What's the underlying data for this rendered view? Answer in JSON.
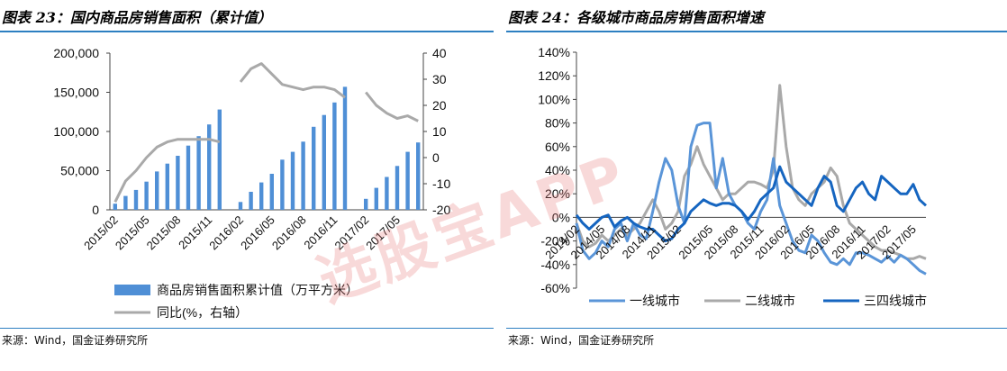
{
  "left": {
    "title": "图表 23：国内商品房销售面积（累计值）",
    "source": "来源：Wind，国金证券研究所",
    "legend": {
      "bar": "商品房销售面积累计值（万平方米）",
      "line": "同比(%，右轴）"
    }
  },
  "right": {
    "title": "图表 24：各级城市商品房销售面积增速",
    "source": "来源：Wind，国金证券研究所",
    "legend": [
      "一线城市",
      "二线城市",
      "三四线城市"
    ]
  },
  "colors": {
    "bar": "#4f8fd6",
    "yoy": "#a9a9a9",
    "tier1": "#5a95d8",
    "tier2": "#a9a9a9",
    "tier34": "#1565c0",
    "rule": "#2d7fc1"
  },
  "watermark": "选股宝APP",
  "chart_data": [
    {
      "type": "bar",
      "title": "图表 23：国内商品房销售面积（累计值）",
      "x": [
        "2015/02",
        "2015/03",
        "2015/04",
        "2015/05",
        "2015/06",
        "2015/07",
        "2015/08",
        "2015/09",
        "2015/10",
        "2015/11",
        "2015/12",
        "2016/01",
        "2016/02",
        "2016/03",
        "2016/04",
        "2016/05",
        "2016/06",
        "2016/07",
        "2016/08",
        "2016/09",
        "2016/10",
        "2016/11",
        "2016/12",
        "2017/01",
        "2017/02",
        "2017/03",
        "2017/04",
        "2017/05",
        "2017/06",
        "2017/07"
      ],
      "x_tick_labels": [
        "2015/02",
        "2015/05",
        "2015/08",
        "2015/11",
        "2016/02",
        "2016/05",
        "2016/08",
        "2016/11",
        "2017/02",
        "2017/05"
      ],
      "ylim": [
        0,
        200000
      ],
      "y_ticks": [
        "0",
        "50,000",
        "100,000",
        "150,000",
        "200,000"
      ],
      "y2lim": [
        -20,
        40
      ],
      "y2_ticks": [
        "-20",
        "-10",
        "0",
        "10",
        "20",
        "30",
        "40"
      ],
      "series": [
        {
          "name": "商品房销售面积累计值（万平方米）",
          "kind": "bar",
          "axis": "left",
          "values": [
            7800,
            17700,
            25400,
            36000,
            49000,
            59000,
            69000,
            82000,
            94000,
            109000,
            128000,
            null,
            10000,
            23000,
            35000,
            46000,
            64000,
            74000,
            87000,
            106000,
            121000,
            137000,
            157000,
            null,
            14000,
            28000,
            42000,
            56000,
            74000,
            86000
          ]
        },
        {
          "name": "同比(%，右轴）",
          "kind": "line",
          "axis": "right",
          "values": [
            -17,
            -9,
            -5,
            0,
            4,
            6,
            7,
            7,
            7,
            7,
            6,
            null,
            29,
            34,
            36,
            32,
            28,
            27,
            26,
            27,
            27,
            26,
            23,
            null,
            25,
            20,
            17,
            15,
            16,
            14
          ]
        }
      ]
    },
    {
      "type": "line",
      "title": "图表 24：各级城市商品房销售面积增速",
      "ylim": [
        -60,
        140
      ],
      "y_ticks": [
        "-60%",
        "-40%",
        "-20%",
        "0%",
        "20%",
        "40%",
        "60%",
        "80%",
        "100%",
        "120%",
        "140%"
      ],
      "x_tick_labels": [
        "2014/02",
        "2014/05",
        "2014/08",
        "2014/11",
        "2015/02",
        "2015/05",
        "2015/08",
        "2015/11",
        "2016/02",
        "2016/05",
        "2016/08",
        "2016/11",
        "2017/02",
        "2017/05"
      ],
      "series": [
        {
          "name": "一线城市",
          "values": [
            -5,
            -28,
            -35,
            -30,
            -20,
            -25,
            -10,
            -5,
            -20,
            -5,
            -15,
            -18,
            5,
            30,
            50,
            40,
            10,
            -5,
            60,
            78,
            80,
            80,
            25,
            50,
            20,
            10,
            5,
            -5,
            -10,
            5,
            15,
            50,
            10,
            -5,
            -20,
            -28,
            -30,
            -15,
            -20,
            -30,
            -38,
            -40,
            -35,
            -40,
            -30,
            -30,
            -32,
            -35,
            -38,
            -33,
            -38,
            -32,
            -35,
            -40,
            -45,
            -48
          ]
        },
        {
          "name": "二线城市",
          "values": [
            -5,
            -20,
            -25,
            -22,
            -15,
            -20,
            -15,
            -10,
            -15,
            -10,
            -5,
            5,
            15,
            5,
            -10,
            -5,
            5,
            35,
            45,
            60,
            45,
            35,
            25,
            15,
            20,
            20,
            25,
            30,
            30,
            28,
            25,
            40,
            112,
            60,
            25,
            15,
            10,
            20,
            25,
            30,
            42,
            35,
            10,
            -5,
            -10,
            -15,
            -20,
            -25,
            -28,
            -28,
            -30,
            -32,
            -35,
            -35,
            -33,
            -35
          ]
        },
        {
          "name": "三四线城市",
          "values": [
            2,
            -5,
            -10,
            -5,
            0,
            2,
            -8,
            -3,
            0,
            -5,
            -8,
            -10,
            -10,
            -15,
            -20,
            -18,
            -10,
            -5,
            5,
            10,
            15,
            12,
            10,
            12,
            12,
            10,
            5,
            -2,
            5,
            15,
            20,
            25,
            43,
            30,
            25,
            20,
            15,
            10,
            25,
            35,
            30,
            10,
            5,
            15,
            25,
            30,
            20,
            15,
            35,
            30,
            25,
            20,
            20,
            28,
            15,
            10
          ]
        }
      ]
    }
  ]
}
